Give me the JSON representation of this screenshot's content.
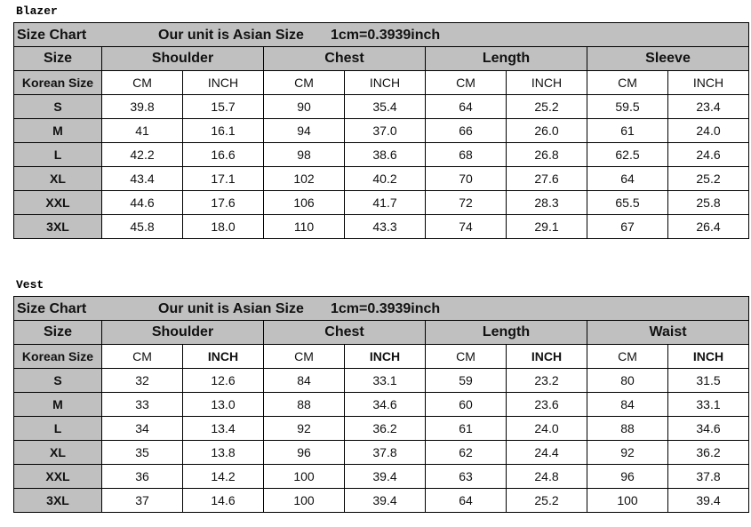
{
  "tables": [
    {
      "label": "Blazer",
      "title": {
        "size_chart": "Size Chart",
        "unit": "Our unit is Asian Size",
        "conversion": "1cm=0.3939inch"
      },
      "groups": [
        "Size",
        "Shoulder",
        "Chest",
        "Length",
        "Sleeve"
      ],
      "subheaders": [
        "Korean Size",
        "CM",
        "INCH",
        "CM",
        "INCH",
        "CM",
        "INCH",
        "CM",
        "INCH"
      ],
      "rows": [
        [
          "S",
          "39.8",
          "15.7",
          "90",
          "35.4",
          "64",
          "25.2",
          "59.5",
          "23.4"
        ],
        [
          "M",
          "41",
          "16.1",
          "94",
          "37.0",
          "66",
          "26.0",
          "61",
          "24.0"
        ],
        [
          "L",
          "42.2",
          "16.6",
          "98",
          "38.6",
          "68",
          "26.8",
          "62.5",
          "24.6"
        ],
        [
          "XL",
          "43.4",
          "17.1",
          "102",
          "40.2",
          "70",
          "27.6",
          "64",
          "25.2"
        ],
        [
          "XXL",
          "44.6",
          "17.6",
          "106",
          "41.7",
          "72",
          "28.3",
          "65.5",
          "25.8"
        ],
        [
          "3XL",
          "45.8",
          "18.0",
          "110",
          "43.3",
          "74",
          "29.1",
          "67",
          "26.4"
        ]
      ]
    },
    {
      "label": "Vest",
      "title": {
        "size_chart": "Size Chart",
        "unit": "Our unit is Asian Size",
        "conversion": "1cm=0.3939inch"
      },
      "groups": [
        "Size",
        "Shoulder",
        "Chest",
        "Length",
        "Waist"
      ],
      "subheaders": [
        "Korean Size",
        "CM",
        "INCH",
        "CM",
        "INCH",
        "CM",
        "INCH",
        "CM",
        "INCH"
      ],
      "rows": [
        [
          "S",
          "32",
          "12.6",
          "84",
          "33.1",
          "59",
          "23.2",
          "80",
          "31.5"
        ],
        [
          "M",
          "33",
          "13.0",
          "88",
          "34.6",
          "60",
          "23.6",
          "84",
          "33.1"
        ],
        [
          "L",
          "34",
          "13.4",
          "92",
          "36.2",
          "61",
          "24.0",
          "88",
          "34.6"
        ],
        [
          "XL",
          "35",
          "13.8",
          "96",
          "37.8",
          "62",
          "24.4",
          "92",
          "36.2"
        ],
        [
          "XXL",
          "36",
          "14.2",
          "100",
          "39.4",
          "63",
          "24.8",
          "96",
          "37.8"
        ],
        [
          "3XL",
          "37",
          "14.6",
          "100",
          "39.4",
          "64",
          "25.2",
          "100",
          "39.4"
        ]
      ]
    }
  ]
}
